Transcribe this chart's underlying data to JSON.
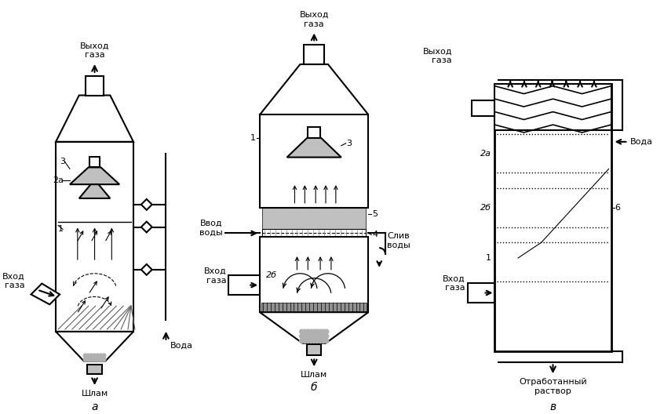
{
  "bg_color": "#ffffff",
  "line_color": "#000000",
  "gray_light": "#c0c0c0",
  "gray_medium": "#909090",
  "gray_dark": "#606060",
  "gray_gravel": "#b0b0b0",
  "labels_a": {
    "vyhod_gaza": "Выход\nгаза",
    "vhod_gaza": "Вход\nгаза",
    "voda": "Вода",
    "shlam": "Шлам",
    "letter": "а",
    "n1": "1",
    "n2a": "2а",
    "n3": "3"
  },
  "labels_b": {
    "vyhod_gaza": "Выход\nгаза",
    "vvod_vody": "Ввод\nводы",
    "vhod_gaza": "Вход\nгаза",
    "sliv_vody": "Слив\nводы",
    "shlam": "Шлам",
    "letter": "б",
    "n1": "1",
    "n2b": "2б",
    "n3": "3",
    "n4": "4",
    "n5": "5"
  },
  "labels_v": {
    "vyhod_gaza": "Выход\nгаза",
    "vhod_gaza": "Вход\nгаза",
    "voda": "Вода",
    "otrab": "Отработанный\nраствор",
    "letter": "в",
    "n1": "1",
    "n2a": "2а",
    "n2b": "2б",
    "n6": "6"
  }
}
